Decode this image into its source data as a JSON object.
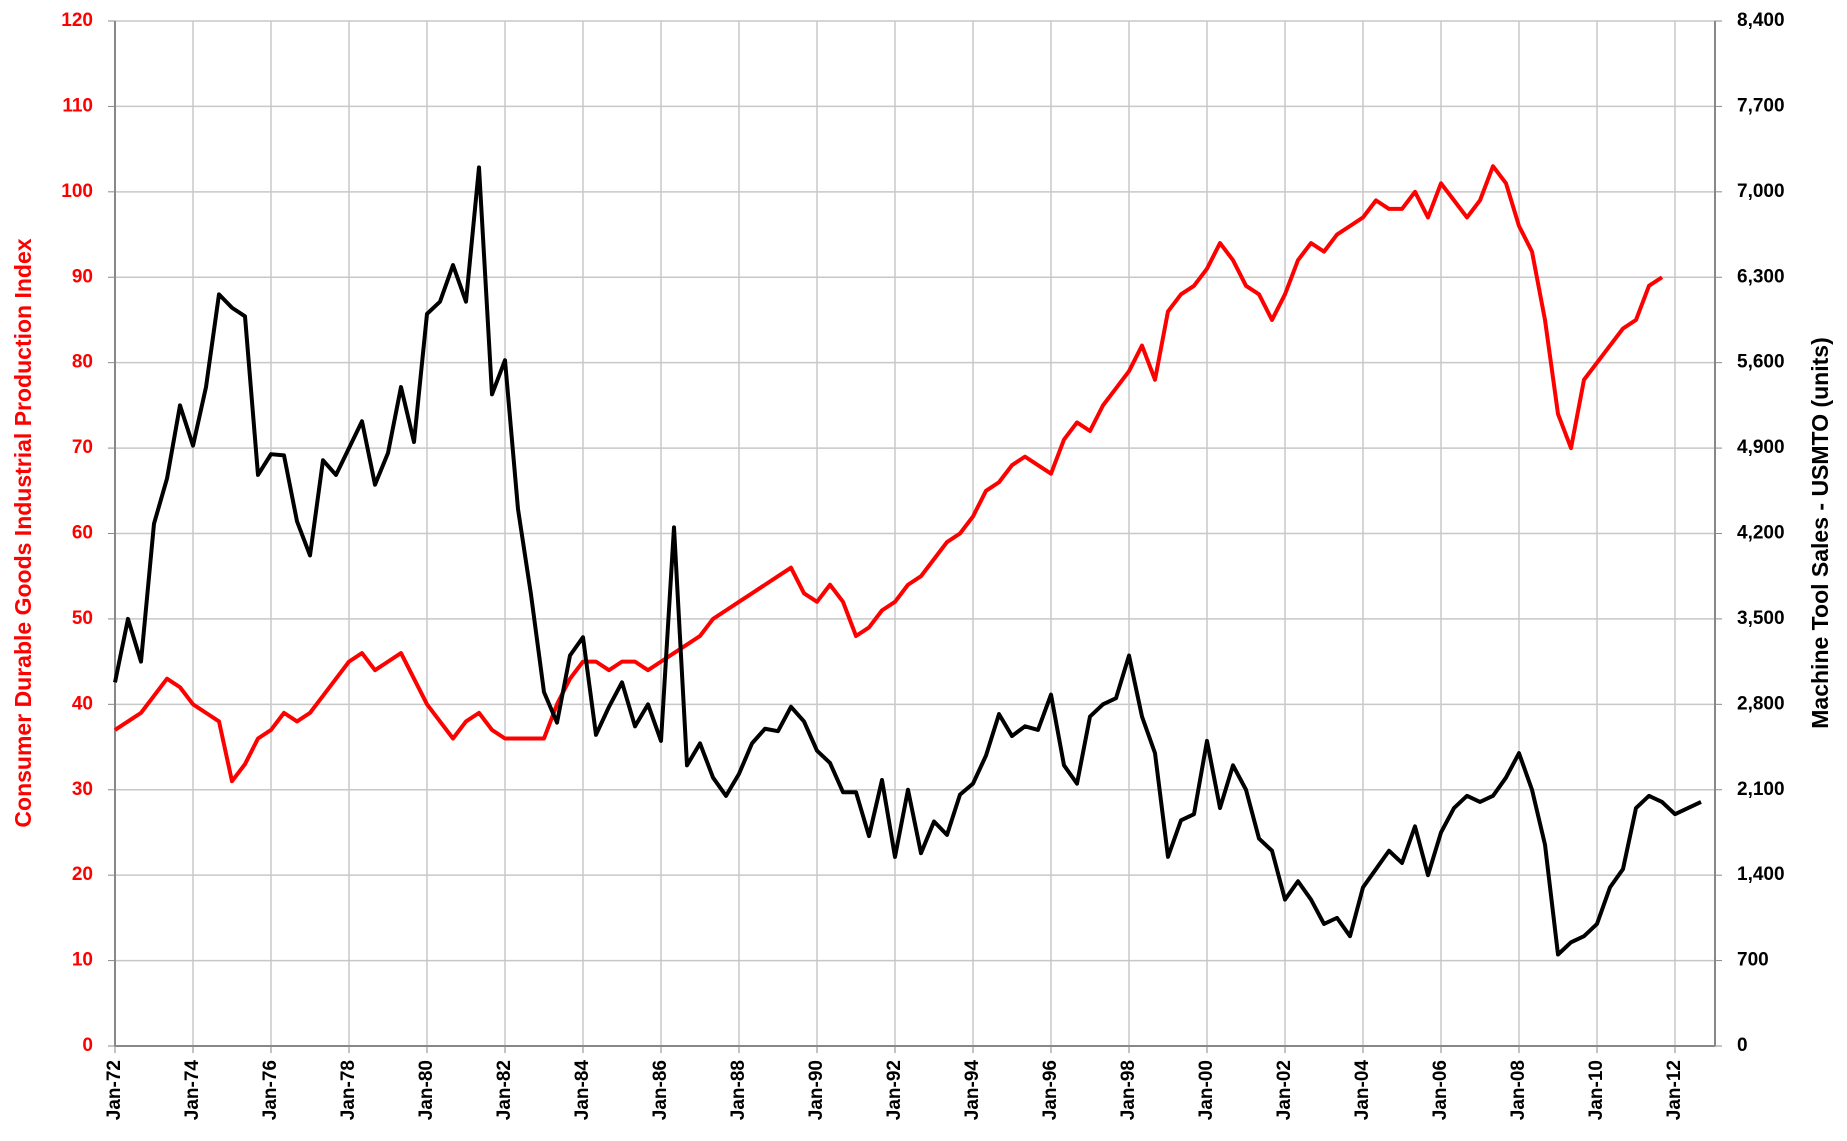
{
  "chart_data": {
    "type": "line",
    "y_label": "Consumer Durable Goods Industrial Production Index",
    "y2_label": "Machine Tool Sales - USMTO (units)",
    "categories": [
      "Jan-72",
      null,
      null,
      null,
      null,
      null,
      "Jan-74",
      null,
      null,
      null,
      null,
      null,
      "Jan-76",
      null,
      null,
      null,
      null,
      null,
      "Jan-78",
      null,
      null,
      null,
      null,
      null,
      "Jan-80",
      null,
      null,
      null,
      null,
      null,
      "Jan-82",
      null,
      null,
      null,
      null,
      null,
      "Jan-84",
      null,
      null,
      null,
      null,
      null,
      "Jan-86",
      null,
      null,
      null,
      null,
      null,
      "Jan-88",
      null,
      null,
      null,
      null,
      null,
      "Jan-90",
      null,
      null,
      null,
      null,
      null,
      "Jan-92",
      null,
      null,
      null,
      null,
      null,
      "Jan-94",
      null,
      null,
      null,
      null,
      null,
      "Jan-96",
      null,
      null,
      null,
      null,
      null,
      "Jan-98",
      null,
      null,
      null,
      null,
      null,
      "Jan-00",
      null,
      null,
      null,
      null,
      null,
      "Jan-02",
      null,
      null,
      null,
      null,
      null,
      "Jan-04",
      null,
      null,
      null,
      null,
      null,
      "Jan-06",
      null,
      null,
      null,
      null,
      null,
      "Jan-08",
      null,
      null,
      null,
      null,
      null,
      "Jan-10",
      null,
      null,
      null,
      null,
      null,
      "Jan-12",
      null,
      null
    ],
    "series": [
      {
        "name": "Consumer Durable Goods Industrial Production Index",
        "color": "#ff0000",
        "values": [
          37,
          38,
          39,
          41,
          43,
          42,
          40,
          39,
          38,
          31,
          33,
          36,
          37,
          39,
          38,
          39,
          41,
          43,
          45,
          46,
          44,
          45,
          46,
          43,
          40,
          38,
          36,
          38,
          39,
          37,
          36,
          36,
          36,
          36,
          40,
          43,
          45,
          45,
          44,
          45,
          45,
          44,
          45,
          46,
          47,
          48,
          50,
          51,
          52,
          53,
          54,
          55,
          56,
          53,
          52,
          54,
          52,
          48,
          49,
          51,
          52,
          54,
          55,
          57,
          59,
          60,
          62,
          65,
          66,
          68,
          69,
          68,
          67,
          71,
          73,
          72,
          75,
          77,
          79,
          82,
          78,
          86,
          88,
          89,
          91,
          94,
          92,
          89,
          88,
          85,
          88,
          92,
          94,
          93,
          95,
          96,
          97,
          99,
          98,
          98,
          100,
          97,
          101,
          99,
          97,
          99,
          103,
          101,
          96,
          93,
          85,
          74,
          70,
          78,
          80,
          82,
          84,
          85,
          89,
          90,
          null,
          null,
          null
        ]
      },
      {
        "name": "Machine Tool Sales - USMTO (units)",
        "color": "#000000",
        "axis": "y2",
        "values": [
          2980,
          3500,
          3150,
          4280,
          4650,
          5250,
          4920,
          5400,
          6160,
          6050,
          5980,
          4680,
          4850,
          4840,
          4300,
          4020,
          4800,
          4680,
          4900,
          5120,
          4600,
          4860,
          5400,
          4950,
          6000,
          6100,
          6400,
          6100,
          7200,
          5340,
          5620,
          4400,
          3700,
          2900,
          2650,
          3200,
          3350,
          2550,
          2780,
          2980,
          2620,
          2800,
          2500,
          4250,
          2300,
          2480,
          2200,
          2050,
          2230,
          2480,
          2600,
          2580,
          2780,
          2660,
          2420,
          2320,
          2080,
          2080,
          1720,
          2180,
          1550,
          2100,
          1580,
          1840,
          1730,
          2060,
          2150,
          2380,
          2720,
          2540,
          2620,
          2590,
          2880,
          2300,
          2150,
          2700,
          2800,
          2850,
          3200,
          2700,
          2400,
          1550,
          1850,
          1900,
          2500,
          1950,
          2300,
          2100,
          1700,
          1600,
          1200,
          1350,
          1200,
          1000,
          1050,
          900,
          1300,
          1450,
          1600,
          1500,
          1800,
          1400,
          1750,
          1950,
          2050,
          2000,
          2050,
          2200,
          2400,
          2100,
          1650,
          750,
          850,
          900,
          1000,
          1300,
          1450,
          1950,
          2050,
          2000,
          1900,
          1950,
          2000
        ]
      }
    ],
    "ylim": [
      0,
      120
    ],
    "yticks": [
      0,
      10,
      20,
      30,
      40,
      50,
      60,
      70,
      80,
      90,
      100,
      110,
      120
    ],
    "y2lim": [
      0,
      8400
    ],
    "y2ticks": [
      0,
      {
        "value": 700,
        "label": "700"
      },
      {
        "value": 1400,
        "label": "1,400"
      },
      {
        "value": 2100,
        "label": "2,100"
      },
      {
        "value": 2800,
        "label": "2,800"
      },
      {
        "value": 3500,
        "label": "3,500"
      },
      {
        "value": 4200,
        "label": "4,200"
      },
      {
        "value": 4900,
        "label": "4,900"
      },
      {
        "value": 5600,
        "label": "5,600"
      },
      {
        "value": 6300,
        "label": "6,300"
      },
      {
        "value": 7000,
        "label": "7,000"
      },
      {
        "value": 7700,
        "label": "7,700"
      },
      {
        "value": 8400,
        "label": "8,400"
      }
    ],
    "grid": true
  }
}
